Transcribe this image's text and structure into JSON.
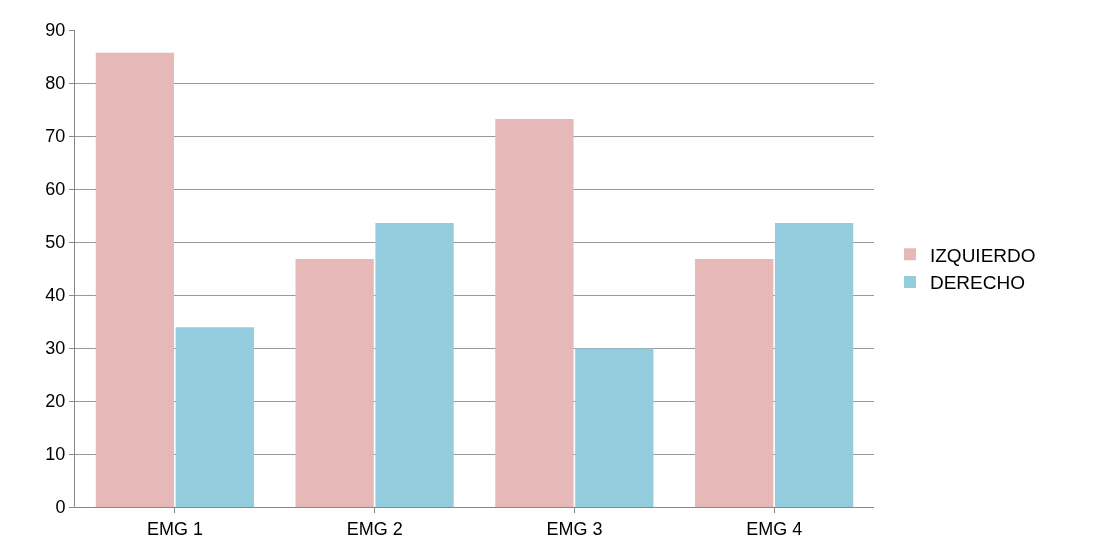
{
  "chart_data": {
    "type": "bar",
    "categories": [
      "EMG 1",
      "EMG 2",
      "EMG 3",
      "EMG 4"
    ],
    "series": [
      {
        "name": "IZQUIERDO",
        "color": "#e6b9b8",
        "values": [
          85.7,
          46.8,
          73.2,
          46.8
        ]
      },
      {
        "name": "DERECHO",
        "color": "#93cddd",
        "values": [
          33.9,
          53.6,
          29.9,
          53.6
        ]
      }
    ],
    "ylim": [
      0,
      90
    ],
    "yticks": [
      0,
      10,
      20,
      30,
      40,
      50,
      60,
      70,
      80,
      90
    ],
    "grid": "y",
    "legend": "right"
  }
}
